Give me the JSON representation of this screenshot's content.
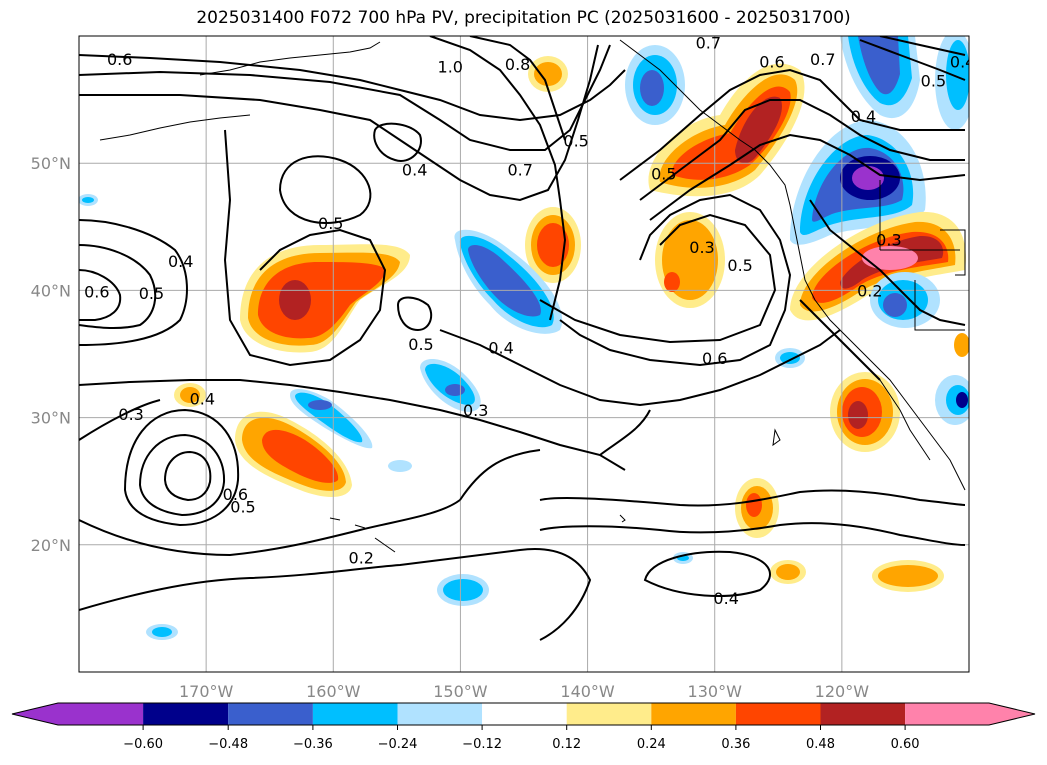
{
  "title": "2025031400 F072 700 hPa PV, precipitation PC (2025031600 - 2025031700)",
  "map": {
    "lon_range": [
      -180,
      -110
    ],
    "lat_range": [
      10,
      60
    ],
    "lon_ticks": [
      {
        "lon": -170,
        "label": "170°W"
      },
      {
        "lon": -160,
        "label": "160°W"
      },
      {
        "lon": -150,
        "label": "150°W"
      },
      {
        "lon": -140,
        "label": "140°W"
      },
      {
        "lon": -130,
        "label": "130°W"
      },
      {
        "lon": -120,
        "label": "120°W"
      }
    ],
    "lat_ticks": [
      {
        "lat": 20,
        "label": "20°N"
      },
      {
        "lat": 30,
        "label": "30°N"
      },
      {
        "lat": 40,
        "label": "40°N"
      },
      {
        "lat": 50,
        "label": "50°N"
      }
    ],
    "grid": true
  },
  "colors": {
    "neg_060_plus": "#9a32cd",
    "neg_048": "#00008b",
    "neg_036": "#3a5fcd",
    "neg_024": "#00bfff",
    "neg_012": "#b0e2ff",
    "pos_012": "#ffec8b",
    "pos_024": "#ffa500",
    "pos_036": "#ff4500",
    "pos_048": "#b22222",
    "pos_060_plus": "#ff82ab"
  },
  "colorbar": {
    "labels": [
      "−0.60",
      "−0.48",
      "−0.36",
      "−0.24",
      "−0.12",
      "0.12",
      "0.24",
      "0.36",
      "0.48",
      "0.60"
    ]
  },
  "contour_labels": [
    {
      "text": "0.6",
      "lon": -176.8,
      "lat": 58.2
    },
    {
      "text": "1.0",
      "lon": -150.8,
      "lat": 57.6
    },
    {
      "text": "0.8",
      "lon": -145.5,
      "lat": 57.8
    },
    {
      "text": "0.7",
      "lon": -130.5,
      "lat": 59.5
    },
    {
      "text": "0.6",
      "lon": -125.5,
      "lat": 58.0
    },
    {
      "text": "0.7",
      "lon": -121.5,
      "lat": 58.2
    },
    {
      "text": "0.5",
      "lon": -112.8,
      "lat": 56.5
    },
    {
      "text": "0.4",
      "lon": -110.5,
      "lat": 58.0
    },
    {
      "text": "0.5",
      "lon": -140.9,
      "lat": 51.8
    },
    {
      "text": "0.7",
      "lon": -145.3,
      "lat": 49.5
    },
    {
      "text": "0.4",
      "lon": -153.6,
      "lat": 49.5
    },
    {
      "text": "0.5",
      "lon": -134.0,
      "lat": 49.2
    },
    {
      "text": "0.4",
      "lon": -118.3,
      "lat": 53.7
    },
    {
      "text": "0.3",
      "lon": -131.0,
      "lat": 43.4
    },
    {
      "text": "0.5",
      "lon": -128.0,
      "lat": 42.0
    },
    {
      "text": "0.3",
      "lon": -116.3,
      "lat": 44.0
    },
    {
      "text": "0.2",
      "lon": -117.8,
      "lat": 40.0
    },
    {
      "text": "0.5",
      "lon": -160.2,
      "lat": 45.3
    },
    {
      "text": "0.4",
      "lon": -172.0,
      "lat": 42.3
    },
    {
      "text": "0.6",
      "lon": -178.6,
      "lat": 39.9
    },
    {
      "text": "0.5",
      "lon": -174.3,
      "lat": 39.8
    },
    {
      "text": "0.5",
      "lon": -153.1,
      "lat": 35.8
    },
    {
      "text": "0.4",
      "lon": -146.8,
      "lat": 35.5
    },
    {
      "text": "0.6",
      "lon": -130.0,
      "lat": 34.7
    },
    {
      "text": "0.3",
      "lon": -175.9,
      "lat": 30.3
    },
    {
      "text": "0.4",
      "lon": -170.3,
      "lat": 31.5
    },
    {
      "text": "0.3",
      "lon": -148.8,
      "lat": 30.6
    },
    {
      "text": "0.5",
      "lon": -167.1,
      "lat": 23.0
    },
    {
      "text": "0.6",
      "lon": -167.7,
      "lat": 24.0
    },
    {
      "text": "0.2",
      "lon": -157.8,
      "lat": 19.0
    },
    {
      "text": "0.4",
      "lon": -129.1,
      "lat": 15.8
    }
  ]
}
